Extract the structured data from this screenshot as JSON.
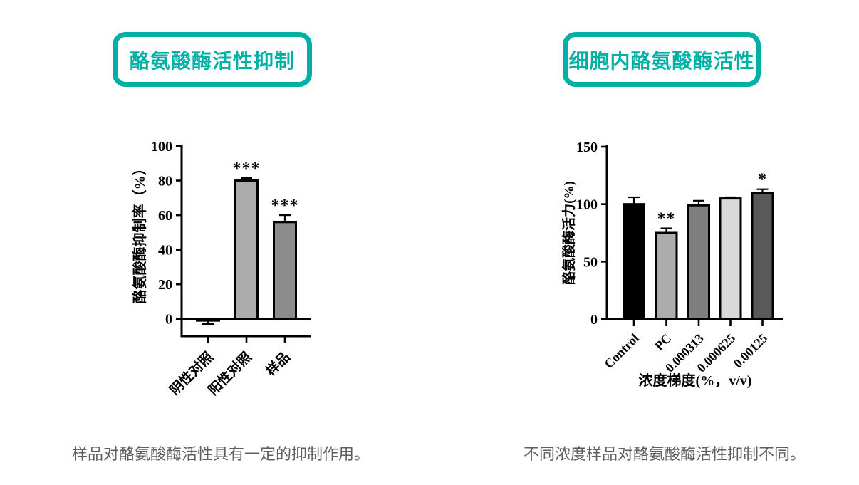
{
  "colors": {
    "accent_teal": "#00b0a4",
    "caption_gray": "#5f5f5f",
    "axis_black": "#000000"
  },
  "panels": [
    {
      "title": "酪氨酸酶活性抑制",
      "caption": "样品对酪氨酸酶活性具有一定的抑制作用。"
    },
    {
      "title": "细胞内酪氨酸酶活性",
      "caption": "不同浓度样品对酪氨酸酶活性抑制不同。"
    }
  ],
  "chart_data": [
    {
      "type": "bar",
      "title": "",
      "xlabel": "",
      "ylabel": "酪氨酸酶抑制率（%）",
      "ylim": [
        -10,
        100
      ],
      "yticks": [
        0,
        20,
        40,
        60,
        80,
        100
      ],
      "categories": [
        "阴性对照",
        "阳性对照",
        "样品"
      ],
      "values": [
        -1,
        80,
        56
      ],
      "errors": [
        2,
        1.5,
        4
      ],
      "significance": [
        "",
        "***",
        "***"
      ],
      "bar_colors": [
        "#acacac",
        "#acacac",
        "#8c8c8c"
      ],
      "grid": false,
      "legend": null
    },
    {
      "type": "bar",
      "title": "",
      "xlabel": "浓度梯度(%，v/v)",
      "ylabel": "酪氨酸酶活力(%)",
      "ylim": [
        0,
        150
      ],
      "yticks": [
        0,
        50,
        100,
        150
      ],
      "categories": [
        "Control",
        "PC",
        "0.000313",
        "0.000625",
        "0.00125"
      ],
      "values": [
        100,
        75,
        99,
        105,
        110
      ],
      "errors": [
        6,
        4,
        4,
        1,
        3
      ],
      "significance": [
        "",
        "**",
        "",
        "",
        "*"
      ],
      "bar_colors": [
        "#000000",
        "#acacac",
        "#7f7f7f",
        "#d9d9d9",
        "#595959"
      ],
      "grid": false,
      "legend": null
    }
  ]
}
